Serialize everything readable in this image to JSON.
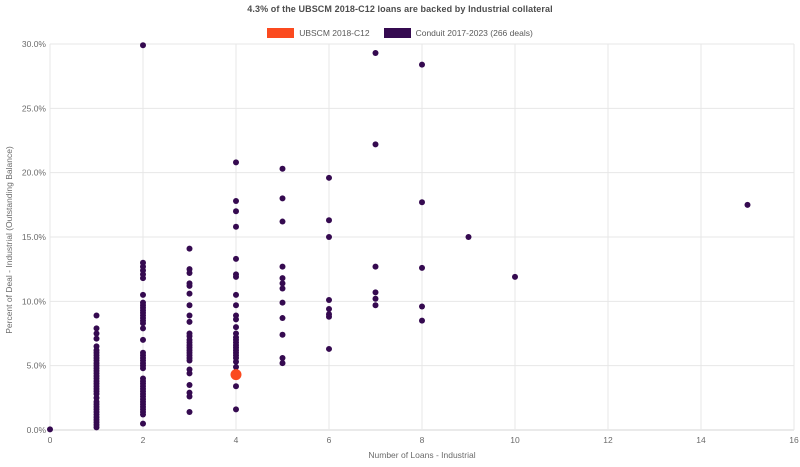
{
  "chart": {
    "title": "4.3% of the UBSCM 2018-C12 loans are backed by Industrial collateral",
    "x_axis_title": "Number of Loans - Industrial",
    "y_axis_title": "Percent of Deal - Industrial (Outstanding Balance)"
  },
  "legend": {
    "items": [
      {
        "label": "UBSCM 2018-C12",
        "color": "#fb4a1f"
      },
      {
        "label": "Conduit 2017-2023 (266 deals)",
        "color": "#350a50"
      }
    ]
  },
  "chart_data": {
    "type": "scatter",
    "title": "4.3% of the UBSCM 2018-C12 loans are backed by Industrial collateral",
    "xlabel": "Number of Loans - Industrial",
    "ylabel": "Percent of Deal - Industrial (Outstanding Balance)",
    "xlim": [
      0,
      16
    ],
    "ylim": [
      0,
      30
    ],
    "x_tick_values": [
      0,
      2,
      4,
      6,
      8,
      10,
      12,
      14,
      16
    ],
    "x_tick_labels": [
      "0",
      "2",
      "4",
      "6",
      "8",
      "10",
      "12",
      "14",
      "16"
    ],
    "y_tick_values": [
      0,
      5,
      10,
      15,
      20,
      25,
      30
    ],
    "y_tick_labels": [
      "0.0%",
      "5.0%",
      "10.0%",
      "15.0%",
      "20.0%",
      "25.0%",
      "30.0%"
    ],
    "grid": true,
    "grid_color": "#e7e7e7",
    "axis_line_color": "#d6d6d6",
    "legend_position": "top-center",
    "series": [
      {
        "name": "UBSCM 2018-C12",
        "color": "#fb4a1f",
        "marker_size": 11,
        "points": [
          [
            4,
            4.3
          ]
        ]
      },
      {
        "name": "Conduit 2017-2023 (266 deals)",
        "color": "#350a50",
        "marker_size": 6,
        "points": [
          [
            0,
            0.05
          ],
          [
            1,
            8.9
          ],
          [
            1,
            7.9
          ],
          [
            1,
            7.5
          ],
          [
            1,
            7.1
          ],
          [
            1,
            6.5
          ],
          [
            1,
            6.2
          ],
          [
            1,
            6.0
          ],
          [
            1,
            5.8
          ],
          [
            1,
            5.6
          ],
          [
            1,
            5.4
          ],
          [
            1,
            5.2
          ],
          [
            1,
            5.0
          ],
          [
            1,
            4.8
          ],
          [
            1,
            4.6
          ],
          [
            1,
            4.4
          ],
          [
            1,
            4.2
          ],
          [
            1,
            4.0
          ],
          [
            1,
            3.8
          ],
          [
            1,
            3.6
          ],
          [
            1,
            3.4
          ],
          [
            1,
            3.2
          ],
          [
            1,
            3.0
          ],
          [
            1,
            2.8
          ],
          [
            1,
            2.5
          ],
          [
            1,
            2.2
          ],
          [
            1,
            2.0
          ],
          [
            1,
            1.8
          ],
          [
            1,
            1.6
          ],
          [
            1,
            1.4
          ],
          [
            1,
            1.2
          ],
          [
            1,
            1.0
          ],
          [
            1,
            0.8
          ],
          [
            1,
            0.6
          ],
          [
            1,
            0.4
          ],
          [
            1,
            0.2
          ],
          [
            2,
            29.9
          ],
          [
            2,
            13.0
          ],
          [
            2,
            12.7
          ],
          [
            2,
            12.4
          ],
          [
            2,
            12.1
          ],
          [
            2,
            11.8
          ],
          [
            2,
            10.5
          ],
          [
            2,
            9.9
          ],
          [
            2,
            9.7
          ],
          [
            2,
            9.5
          ],
          [
            2,
            9.3
          ],
          [
            2,
            9.1
          ],
          [
            2,
            8.9
          ],
          [
            2,
            8.7
          ],
          [
            2,
            8.5
          ],
          [
            2,
            8.3
          ],
          [
            2,
            7.9
          ],
          [
            2,
            7.0
          ],
          [
            2,
            6.0
          ],
          [
            2,
            5.8
          ],
          [
            2,
            5.6
          ],
          [
            2,
            5.4
          ],
          [
            2,
            5.2
          ],
          [
            2,
            5.0
          ],
          [
            2,
            4.8
          ],
          [
            2,
            4.0
          ],
          [
            2,
            3.8
          ],
          [
            2,
            3.6
          ],
          [
            2,
            3.4
          ],
          [
            2,
            3.2
          ],
          [
            2,
            3.0
          ],
          [
            2,
            2.8
          ],
          [
            2,
            2.6
          ],
          [
            2,
            2.4
          ],
          [
            2,
            2.2
          ],
          [
            2,
            2.0
          ],
          [
            2,
            1.8
          ],
          [
            2,
            1.6
          ],
          [
            2,
            1.4
          ],
          [
            2,
            1.2
          ],
          [
            2,
            0.5
          ],
          [
            3,
            14.1
          ],
          [
            3,
            12.5
          ],
          [
            3,
            12.2
          ],
          [
            3,
            11.4
          ],
          [
            3,
            11.2
          ],
          [
            3,
            10.6
          ],
          [
            3,
            9.7
          ],
          [
            3,
            8.9
          ],
          [
            3,
            8.4
          ],
          [
            3,
            7.5
          ],
          [
            3,
            7.3
          ],
          [
            3,
            7.0
          ],
          [
            3,
            6.8
          ],
          [
            3,
            6.6
          ],
          [
            3,
            6.4
          ],
          [
            3,
            6.2
          ],
          [
            3,
            6.0
          ],
          [
            3,
            5.8
          ],
          [
            3,
            5.6
          ],
          [
            3,
            5.4
          ],
          [
            3,
            4.7
          ],
          [
            3,
            4.4
          ],
          [
            3,
            3.5
          ],
          [
            3,
            2.9
          ],
          [
            3,
            2.6
          ],
          [
            3,
            1.4
          ],
          [
            4,
            20.8
          ],
          [
            4,
            17.8
          ],
          [
            4,
            17.0
          ],
          [
            4,
            15.8
          ],
          [
            4,
            13.3
          ],
          [
            4,
            12.1
          ],
          [
            4,
            11.9
          ],
          [
            4,
            10.5
          ],
          [
            4,
            9.7
          ],
          [
            4,
            8.9
          ],
          [
            4,
            8.6
          ],
          [
            4,
            8.0
          ],
          [
            4,
            7.5
          ],
          [
            4,
            7.2
          ],
          [
            4,
            7.0
          ],
          [
            4,
            6.8
          ],
          [
            4,
            6.6
          ],
          [
            4,
            6.4
          ],
          [
            4,
            6.2
          ],
          [
            4,
            6.0
          ],
          [
            4,
            5.8
          ],
          [
            4,
            5.6
          ],
          [
            4,
            5.3
          ],
          [
            4,
            4.9
          ],
          [
            4,
            3.4
          ],
          [
            4,
            1.6
          ],
          [
            5,
            20.3
          ],
          [
            5,
            18.0
          ],
          [
            5,
            16.2
          ],
          [
            5,
            12.7
          ],
          [
            5,
            11.8
          ],
          [
            5,
            11.4
          ],
          [
            5,
            11.0
          ],
          [
            5,
            9.9
          ],
          [
            5,
            8.7
          ],
          [
            5,
            7.4
          ],
          [
            5,
            5.6
          ],
          [
            5,
            5.2
          ],
          [
            6,
            19.6
          ],
          [
            6,
            16.3
          ],
          [
            6,
            15.0
          ],
          [
            6,
            10.1
          ],
          [
            6,
            9.4
          ],
          [
            6,
            9.0
          ],
          [
            6,
            8.8
          ],
          [
            6,
            6.3
          ],
          [
            7,
            29.3
          ],
          [
            7,
            22.2
          ],
          [
            7,
            12.7
          ],
          [
            7,
            10.7
          ],
          [
            7,
            10.2
          ],
          [
            7,
            9.7
          ],
          [
            8,
            28.4
          ],
          [
            8,
            17.7
          ],
          [
            8,
            12.6
          ],
          [
            8,
            9.6
          ],
          [
            8,
            8.5
          ],
          [
            9,
            15.0
          ],
          [
            10,
            11.9
          ],
          [
            15,
            17.5
          ]
        ]
      }
    ]
  }
}
